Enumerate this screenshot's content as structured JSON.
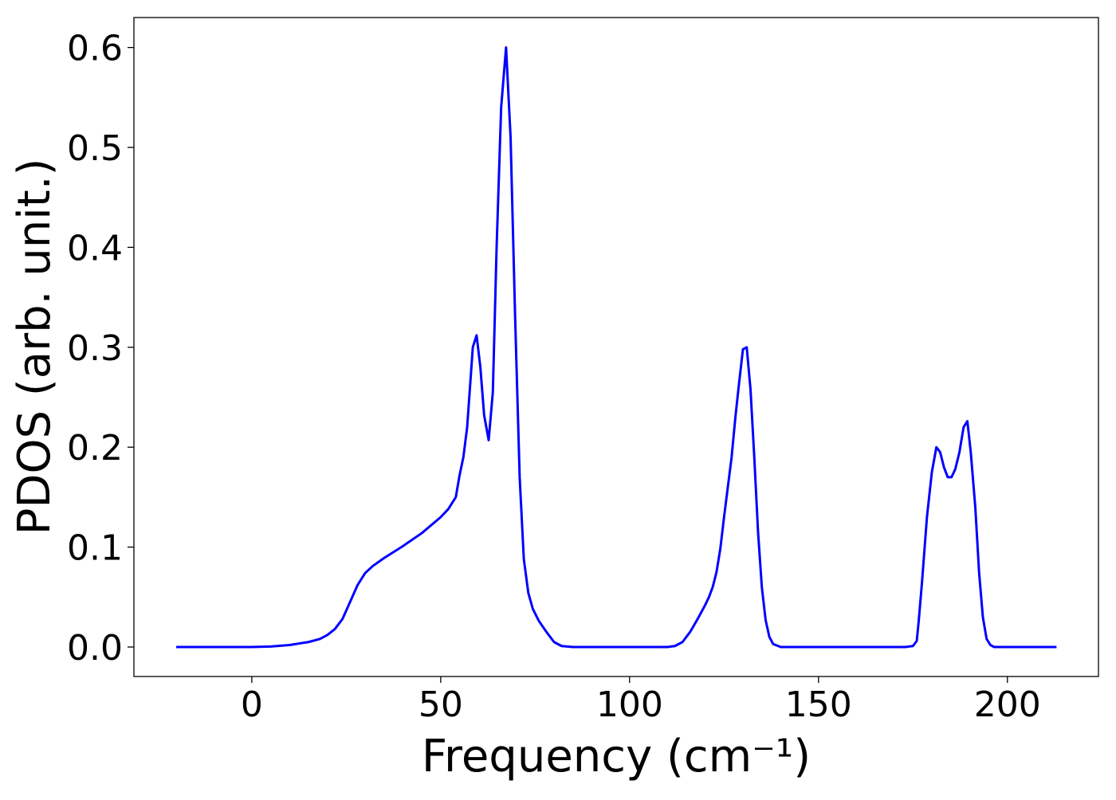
{
  "chart_data": {
    "type": "line",
    "xlabel": "Frequency (cm⁻¹)",
    "ylabel": "PDOS (arb. unit.)",
    "color": "#0000ff",
    "x": [
      -20,
      0,
      5,
      10,
      15,
      18,
      20,
      22,
      24,
      26,
      28,
      30,
      32,
      35,
      40,
      45,
      50,
      52,
      54,
      55,
      56,
      57,
      58.5,
      59.5,
      60.5,
      61.5,
      62.7,
      63.8,
      64.8,
      66,
      67.3,
      68.5,
      69.7,
      70.9,
      72,
      73.2,
      74.4,
      76,
      78,
      80,
      82,
      85,
      110,
      112,
      114,
      116,
      118,
      120,
      121,
      122,
      123,
      124,
      125,
      126,
      127,
      128,
      129,
      130,
      131,
      132,
      133,
      134,
      135,
      136,
      137,
      138,
      140,
      173,
      175,
      176,
      176.5,
      177.4,
      178.7,
      180,
      181.2,
      182.2,
      183.2,
      184.2,
      185.2,
      186.2,
      187.3,
      188.4,
      189.4,
      190.3,
      191.5,
      192.5,
      193.5,
      194.5,
      195.5,
      196.5,
      198,
      213
    ],
    "values": [
      0,
      0,
      0.0005,
      0.002,
      0.005,
      0.008,
      0.012,
      0.018,
      0.028,
      0.045,
      0.062,
      0.074,
      0.081,
      0.089,
      0.101,
      0.114,
      0.13,
      0.138,
      0.15,
      0.172,
      0.19,
      0.22,
      0.3,
      0.312,
      0.28,
      0.232,
      0.207,
      0.255,
      0.4,
      0.54,
      0.6,
      0.51,
      0.33,
      0.17,
      0.088,
      0.054,
      0.038,
      0.026,
      0.015,
      0.005,
      0.001,
      0,
      0,
      0.001,
      0.005,
      0.015,
      0.028,
      0.042,
      0.05,
      0.06,
      0.075,
      0.098,
      0.13,
      0.16,
      0.19,
      0.23,
      0.265,
      0.298,
      0.3,
      0.258,
      0.19,
      0.115,
      0.06,
      0.027,
      0.01,
      0.003,
      0,
      0,
      0.001,
      0.006,
      0.025,
      0.065,
      0.13,
      0.175,
      0.2,
      0.195,
      0.18,
      0.17,
      0.17,
      0.178,
      0.195,
      0.22,
      0.226,
      0.195,
      0.14,
      0.075,
      0.03,
      0.008,
      0.002,
      0,
      0,
      0
    ],
    "xlim": [
      -31.2,
      224.1
    ],
    "ylim": [
      -0.0295,
      0.63
    ],
    "xticks": [
      0,
      50,
      100,
      150,
      200
    ],
    "yticks": [
      {
        "value": 0,
        "label": "0.0"
      },
      0.1,
      0.2,
      0.3,
      0.4,
      0.5,
      0.6
    ]
  }
}
